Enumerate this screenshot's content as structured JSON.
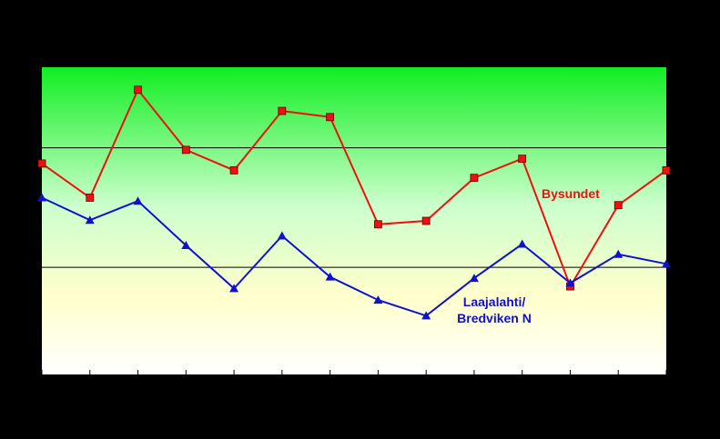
{
  "chart_data": {
    "type": "line",
    "title": "",
    "xlabel": "",
    "ylabel": "",
    "grid": "horizontal lines",
    "x": [
      0,
      1,
      2,
      3,
      4,
      5,
      6,
      7,
      8,
      9,
      10,
      11,
      12,
      13
    ],
    "ylim": [
      0,
      45
    ],
    "reference_lines": [
      15.7,
      33.2
    ],
    "series": [
      {
        "name": "Bysundet",
        "color": "#ee1111",
        "marker": "square",
        "values": [
          30.9,
          25.9,
          41.7,
          32.9,
          29.9,
          38.6,
          37.7,
          22.0,
          22.5,
          28.8,
          31.6,
          12.9,
          24.8,
          29.9
        ]
      },
      {
        "name": "Laajalahti/\nBredviken N",
        "name_lines": [
          "Laajalahti/",
          "Bredviken N"
        ],
        "color": "#1111cc",
        "marker": "triangle",
        "values": [
          25.9,
          22.6,
          25.4,
          18.9,
          12.6,
          20.3,
          14.3,
          10.9,
          8.6,
          14.1,
          19.1,
          13.4,
          17.6,
          16.2
        ]
      }
    ],
    "colors": {
      "background": "#000000",
      "plot_top": "#11ee22",
      "plot_mid": "#ccffcc",
      "plot_lower": "#ffffcc",
      "plot_bottom": "#ffffff",
      "axis": "#000000"
    }
  }
}
